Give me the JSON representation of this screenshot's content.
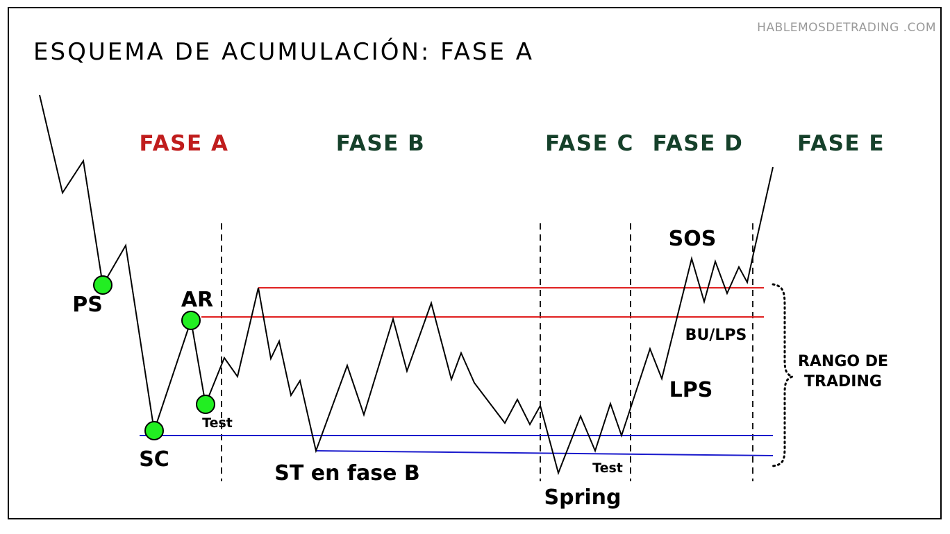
{
  "watermark": "HABLEMOSDETRADING .COM",
  "title": "ESQUEMA DE ACUMULACIÓN: FASE A",
  "phases": [
    {
      "label": "FASE A",
      "color": "#c01d1d"
    },
    {
      "label": "FASE B",
      "color": "#15402a"
    },
    {
      "label": "FASE C",
      "color": "#15402a"
    },
    {
      "label": "FASE D",
      "color": "#15402a"
    },
    {
      "label": "FASE E",
      "color": "#15402a"
    }
  ],
  "events": {
    "ps": "PS",
    "sc": "SC",
    "ar": "AR",
    "test_a": "Test",
    "st": "ST en fase B",
    "spring": "Spring",
    "test_c": "Test",
    "lps": "LPS",
    "sos": "SOS",
    "bu_lps": "BU/LPS"
  },
  "range": {
    "line1": "RANGO DE",
    "line2": "TRADING"
  },
  "colors": {
    "resistance": "#e02020",
    "support": "#1a1acc",
    "marker": "#22ee22",
    "price": "#000000"
  }
}
